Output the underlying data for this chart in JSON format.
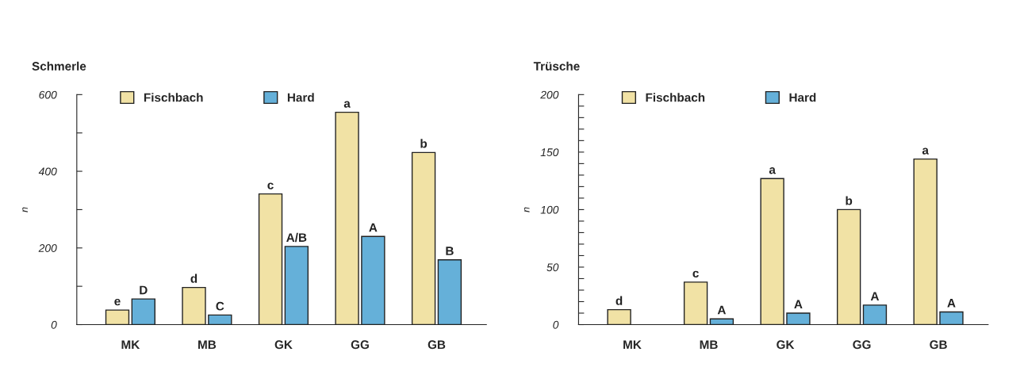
{
  "chart_data": [
    {
      "type": "bar",
      "title": "Schmerle",
      "ylabel": "n",
      "categories": [
        "MK",
        "MB",
        "GK",
        "GG",
        "GB"
      ],
      "series": [
        {
          "name": "Fischbach",
          "color": "#f1e2a5",
          "values": [
            38,
            97,
            341,
            554,
            449
          ],
          "value_labels": [
            "e",
            "d",
            "c",
            "a",
            "b"
          ]
        },
        {
          "name": "Hard",
          "color": "#65b0d9",
          "values": [
            67,
            25,
            204,
            230,
            169
          ],
          "value_labels": [
            "D",
            "C",
            "A/B",
            "A",
            "B"
          ]
        }
      ],
      "ylim": [
        0,
        600
      ],
      "yticks": [
        0,
        {
          "value": 100,
          "label": null
        },
        200,
        {
          "value": 300,
          "label": null
        },
        400,
        {
          "value": 500,
          "label": null
        },
        600
      ],
      "grid": false,
      "legend": "top left"
    },
    {
      "type": "bar",
      "title": "Trüsche",
      "ylabel": "n",
      "categories": [
        "MK",
        "MB",
        "GK",
        "GG",
        "GB"
      ],
      "series": [
        {
          "name": "Fischbach",
          "color": "#f1e2a5",
          "values": [
            13,
            37,
            127,
            100,
            144
          ],
          "value_labels": [
            "d",
            "c",
            "a",
            "b",
            "a"
          ]
        },
        {
          "name": "Hard",
          "color": "#65b0d9",
          "values": [
            null,
            5,
            10,
            17,
            11
          ],
          "value_labels": [
            null,
            "A",
            "A",
            "A",
            "A"
          ]
        }
      ],
      "ylim": [
        0,
        200
      ],
      "yticks": [
        0,
        {
          "value": 10,
          "label": null
        },
        {
          "value": 20,
          "label": null
        },
        {
          "value": 30,
          "label": null
        },
        {
          "value": 40,
          "label": null
        },
        50,
        {
          "value": 60,
          "label": null
        },
        {
          "value": 70,
          "label": null
        },
        {
          "value": 80,
          "label": null
        },
        {
          "value": 90,
          "label": null
        },
        100,
        {
          "value": 110,
          "label": null
        },
        {
          "value": 120,
          "label": null
        },
        {
          "value": 130,
          "label": null
        },
        {
          "value": 140,
          "label": null
        },
        150,
        {
          "value": 160,
          "label": null
        },
        {
          "value": 170,
          "label": null
        },
        {
          "value": 180,
          "label": null
        },
        {
          "value": 190,
          "label": null
        },
        200
      ],
      "grid": false,
      "legend": "top left"
    }
  ]
}
